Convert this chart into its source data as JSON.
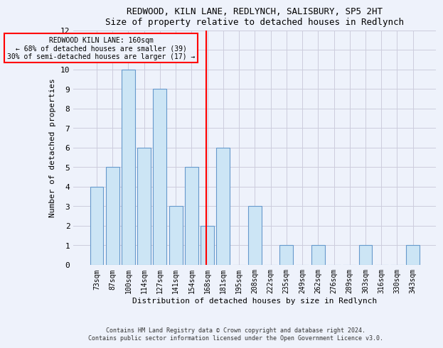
{
  "title_line1": "REDWOOD, KILN LANE, REDLYNCH, SALISBURY, SP5 2HT",
  "title_line2": "Size of property relative to detached houses in Redlynch",
  "xlabel": "Distribution of detached houses by size in Redlynch",
  "ylabel": "Number of detached properties",
  "categories": [
    "73sqm",
    "87sqm",
    "100sqm",
    "114sqm",
    "127sqm",
    "141sqm",
    "154sqm",
    "168sqm",
    "181sqm",
    "195sqm",
    "208sqm",
    "222sqm",
    "235sqm",
    "249sqm",
    "262sqm",
    "276sqm",
    "289sqm",
    "303sqm",
    "316sqm",
    "330sqm",
    "343sqm"
  ],
  "values": [
    4,
    5,
    10,
    6,
    9,
    3,
    5,
    2,
    6,
    0,
    3,
    0,
    1,
    0,
    1,
    0,
    0,
    1,
    0,
    0,
    1
  ],
  "bar_color": "#cce5f5",
  "bar_edge_color": "#6699cc",
  "reference_line_color": "red",
  "annotation_text": "REDWOOD KILN LANE: 160sqm\n← 68% of detached houses are smaller (39)\n30% of semi-detached houses are larger (17) →",
  "annotation_box_color": "red",
  "ylim": [
    0,
    12
  ],
  "yticks": [
    0,
    1,
    2,
    3,
    4,
    5,
    6,
    7,
    8,
    9,
    10,
    11,
    12
  ],
  "footer_line1": "Contains HM Land Registry data © Crown copyright and database right 2024.",
  "footer_line2": "Contains public sector information licensed under the Open Government Licence v3.0.",
  "bg_color": "#eef2fb",
  "grid_color": "#ccccdd"
}
